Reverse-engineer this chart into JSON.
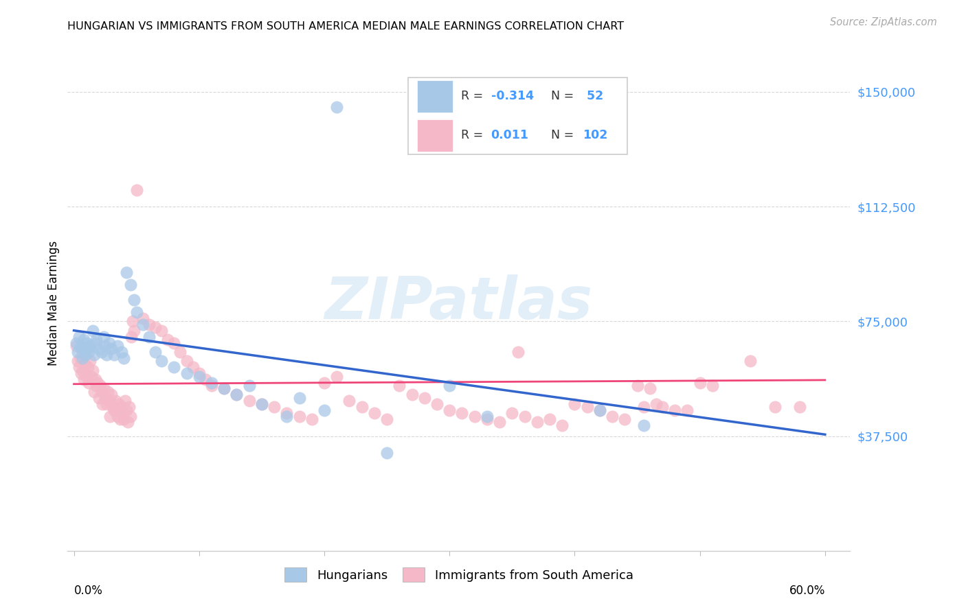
{
  "title": "HUNGARIAN VS IMMIGRANTS FROM SOUTH AMERICA MEDIAN MALE EARNINGS CORRELATION CHART",
  "source": "Source: ZipAtlas.com",
  "ylabel": "Median Male Earnings",
  "ylim": [
    0,
    162000
  ],
  "xlim": [
    -0.005,
    0.62
  ],
  "background_color": "#ffffff",
  "grid_color": "#d8d8d8",
  "watermark": "ZIPatlas",
  "blue_color": "#a8c8e8",
  "pink_color": "#f4b8c8",
  "blue_line_color": "#3366cc",
  "pink_line_color": "#ee4477",
  "ytick_values": [
    37500,
    75000,
    112500,
    150000
  ],
  "ytick_labels": [
    "$37,500",
    "$75,000",
    "$112,500",
    "$150,000"
  ],
  "blue_trend_x": [
    0.0,
    0.6
  ],
  "blue_trend_y": [
    72000,
    38000
  ],
  "pink_trend_x": [
    0.0,
    0.6
  ],
  "pink_trend_y": [
    54500,
    55800
  ],
  "blue_scatter": [
    [
      0.002,
      68000
    ],
    [
      0.003,
      65000
    ],
    [
      0.004,
      70000
    ],
    [
      0.005,
      67000
    ],
    [
      0.006,
      66000
    ],
    [
      0.007,
      63000
    ],
    [
      0.008,
      69000
    ],
    [
      0.009,
      64000
    ],
    [
      0.01,
      68000
    ],
    [
      0.011,
      66000
    ],
    [
      0.012,
      65000
    ],
    [
      0.013,
      67000
    ],
    [
      0.015,
      72000
    ],
    [
      0.016,
      64000
    ],
    [
      0.017,
      68000
    ],
    [
      0.018,
      69000
    ],
    [
      0.02,
      66000
    ],
    [
      0.022,
      65000
    ],
    [
      0.024,
      70000
    ],
    [
      0.025,
      67000
    ],
    [
      0.026,
      64000
    ],
    [
      0.028,
      68000
    ],
    [
      0.03,
      66000
    ],
    [
      0.032,
      64000
    ],
    [
      0.035,
      67000
    ],
    [
      0.038,
      65000
    ],
    [
      0.04,
      63000
    ],
    [
      0.042,
      91000
    ],
    [
      0.045,
      87000
    ],
    [
      0.048,
      82000
    ],
    [
      0.05,
      78000
    ],
    [
      0.055,
      74000
    ],
    [
      0.06,
      70000
    ],
    [
      0.065,
      65000
    ],
    [
      0.07,
      62000
    ],
    [
      0.08,
      60000
    ],
    [
      0.09,
      58000
    ],
    [
      0.1,
      57000
    ],
    [
      0.11,
      55000
    ],
    [
      0.12,
      53000
    ],
    [
      0.13,
      51000
    ],
    [
      0.14,
      54000
    ],
    [
      0.15,
      48000
    ],
    [
      0.17,
      44000
    ],
    [
      0.18,
      50000
    ],
    [
      0.2,
      46000
    ],
    [
      0.21,
      145000
    ],
    [
      0.25,
      32000
    ],
    [
      0.3,
      54000
    ],
    [
      0.33,
      44000
    ],
    [
      0.42,
      46000
    ],
    [
      0.455,
      41000
    ]
  ],
  "pink_scatter": [
    [
      0.002,
      67000
    ],
    [
      0.003,
      62000
    ],
    [
      0.004,
      60000
    ],
    [
      0.005,
      63000
    ],
    [
      0.006,
      58000
    ],
    [
      0.007,
      59000
    ],
    [
      0.008,
      56000
    ],
    [
      0.009,
      61000
    ],
    [
      0.01,
      57000
    ],
    [
      0.011,
      60000
    ],
    [
      0.012,
      55000
    ],
    [
      0.013,
      62000
    ],
    [
      0.014,
      57000
    ],
    [
      0.015,
      59000
    ],
    [
      0.016,
      52000
    ],
    [
      0.017,
      56000
    ],
    [
      0.018,
      54000
    ],
    [
      0.019,
      55000
    ],
    [
      0.02,
      50000
    ],
    [
      0.021,
      54000
    ],
    [
      0.022,
      52000
    ],
    [
      0.023,
      48000
    ],
    [
      0.024,
      53000
    ],
    [
      0.025,
      50000
    ],
    [
      0.026,
      48000
    ],
    [
      0.027,
      52000
    ],
    [
      0.028,
      49000
    ],
    [
      0.029,
      44000
    ],
    [
      0.03,
      51000
    ],
    [
      0.031,
      47000
    ],
    [
      0.032,
      46000
    ],
    [
      0.033,
      49000
    ],
    [
      0.034,
      46000
    ],
    [
      0.035,
      44000
    ],
    [
      0.036,
      48000
    ],
    [
      0.037,
      43000
    ],
    [
      0.038,
      47000
    ],
    [
      0.039,
      45000
    ],
    [
      0.04,
      43000
    ],
    [
      0.041,
      49000
    ],
    [
      0.042,
      46000
    ],
    [
      0.043,
      42000
    ],
    [
      0.044,
      47000
    ],
    [
      0.045,
      44000
    ],
    [
      0.046,
      70000
    ],
    [
      0.047,
      75000
    ],
    [
      0.048,
      72000
    ],
    [
      0.05,
      118000
    ],
    [
      0.055,
      76000
    ],
    [
      0.06,
      74000
    ],
    [
      0.065,
      73000
    ],
    [
      0.07,
      72000
    ],
    [
      0.075,
      69000
    ],
    [
      0.08,
      68000
    ],
    [
      0.085,
      65000
    ],
    [
      0.09,
      62000
    ],
    [
      0.095,
      60000
    ],
    [
      0.1,
      58000
    ],
    [
      0.105,
      56000
    ],
    [
      0.11,
      54000
    ],
    [
      0.12,
      53000
    ],
    [
      0.13,
      51000
    ],
    [
      0.14,
      49000
    ],
    [
      0.15,
      48000
    ],
    [
      0.16,
      47000
    ],
    [
      0.17,
      45000
    ],
    [
      0.18,
      44000
    ],
    [
      0.19,
      43000
    ],
    [
      0.2,
      55000
    ],
    [
      0.21,
      57000
    ],
    [
      0.22,
      49000
    ],
    [
      0.23,
      47000
    ],
    [
      0.24,
      45000
    ],
    [
      0.25,
      43000
    ],
    [
      0.26,
      54000
    ],
    [
      0.27,
      51000
    ],
    [
      0.28,
      50000
    ],
    [
      0.29,
      48000
    ],
    [
      0.3,
      46000
    ],
    [
      0.31,
      45000
    ],
    [
      0.32,
      44000
    ],
    [
      0.33,
      43000
    ],
    [
      0.34,
      42000
    ],
    [
      0.35,
      45000
    ],
    [
      0.355,
      65000
    ],
    [
      0.36,
      44000
    ],
    [
      0.37,
      42000
    ],
    [
      0.38,
      43000
    ],
    [
      0.39,
      41000
    ],
    [
      0.4,
      48000
    ],
    [
      0.41,
      47000
    ],
    [
      0.42,
      46000
    ],
    [
      0.43,
      44000
    ],
    [
      0.44,
      43000
    ],
    [
      0.45,
      54000
    ],
    [
      0.455,
      47000
    ],
    [
      0.46,
      53000
    ],
    [
      0.465,
      48000
    ],
    [
      0.47,
      47000
    ],
    [
      0.48,
      46000
    ],
    [
      0.49,
      46000
    ],
    [
      0.5,
      55000
    ],
    [
      0.51,
      54000
    ],
    [
      0.54,
      62000
    ],
    [
      0.56,
      47000
    ],
    [
      0.58,
      47000
    ]
  ]
}
